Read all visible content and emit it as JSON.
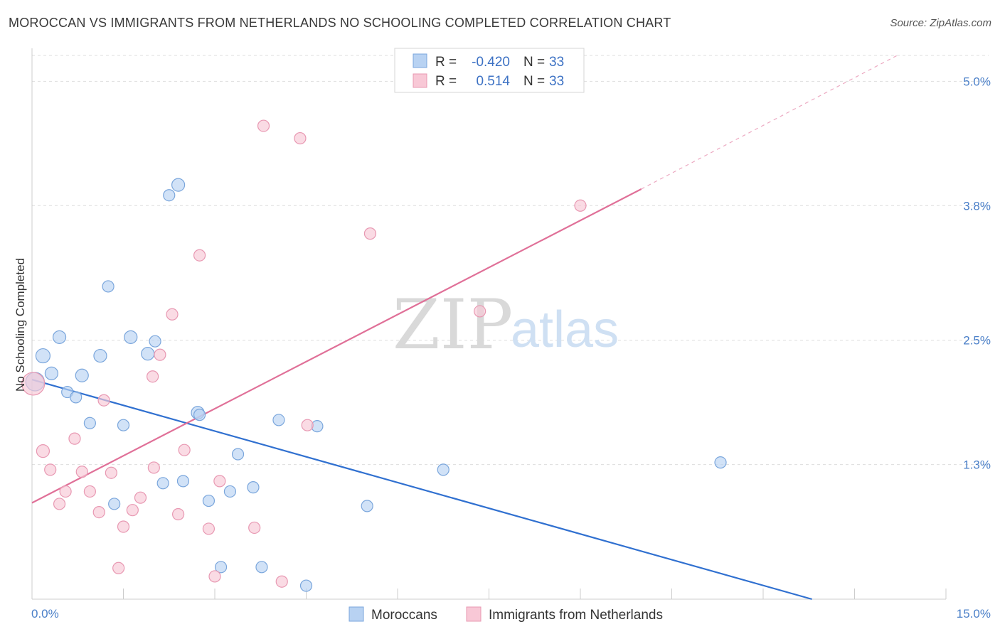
{
  "title": "MOROCCAN VS IMMIGRANTS FROM NETHERLANDS NO SCHOOLING COMPLETED CORRELATION CHART",
  "source": "Source: ZipAtlas.com",
  "watermark": {
    "zip": "ZIP",
    "atlas": "atlas"
  },
  "colors": {
    "blue_fill": "#b8d2f2",
    "blue_stroke": "#7aa6dc",
    "blue_line": "#3070d0",
    "pink_fill": "#f8c8d6",
    "pink_stroke": "#e898b2",
    "pink_line": "#e07098",
    "grid": "#dddddd",
    "axis_text": "#4a7fc8"
  },
  "legend": {
    "rows": [
      {
        "r_label": "R =",
        "r_value": "-0.420",
        "n_label": "N =",
        "n_value": "33"
      },
      {
        "r_label": "R =",
        "r_value": "0.514",
        "n_label": "N =",
        "n_value": "33"
      }
    ]
  },
  "chart_data": {
    "type": "scatter",
    "title": "MOROCCAN VS IMMIGRANTS FROM NETHERLANDS NO SCHOOLING COMPLETED CORRELATION CHART",
    "xlabel": "",
    "ylabel": "No Schooling Completed",
    "xlim": [
      0,
      15
    ],
    "ylim": [
      0,
      5.25
    ],
    "x_tick_labels": [
      "0.0%",
      "15.0%"
    ],
    "y_ticks": [
      1.3,
      2.5,
      3.8,
      5.0
    ],
    "y_tick_labels": [
      "1.3%",
      "2.5%",
      "3.8%",
      "5.0%"
    ],
    "grid": true,
    "legend_position": "top-center",
    "series": [
      {
        "name": "Moroccans",
        "color": "blue",
        "trend": {
          "x0": 0,
          "y0": 2.12,
          "x1": 12.8,
          "y1": 0.0
        },
        "points": [
          {
            "x": 0.05,
            "y": 2.1,
            "s": 13
          },
          {
            "x": 0.18,
            "y": 2.35,
            "s": 10
          },
          {
            "x": 0.32,
            "y": 2.18,
            "s": 9
          },
          {
            "x": 0.45,
            "y": 2.53,
            "s": 9
          },
          {
            "x": 0.58,
            "y": 2.0,
            "s": 8
          },
          {
            "x": 0.72,
            "y": 1.95,
            "s": 8
          },
          {
            "x": 0.82,
            "y": 2.16,
            "s": 9
          },
          {
            "x": 0.95,
            "y": 1.7,
            "s": 8
          },
          {
            "x": 1.12,
            "y": 2.35,
            "s": 9
          },
          {
            "x": 1.25,
            "y": 3.02,
            "s": 8
          },
          {
            "x": 1.35,
            "y": 0.92,
            "s": 8
          },
          {
            "x": 1.5,
            "y": 1.68,
            "s": 8
          },
          {
            "x": 1.62,
            "y": 2.53,
            "s": 9
          },
          {
            "x": 1.9,
            "y": 2.37,
            "s": 9
          },
          {
            "x": 2.02,
            "y": 2.49,
            "s": 8
          },
          {
            "x": 2.15,
            "y": 1.12,
            "s": 8
          },
          {
            "x": 2.25,
            "y": 3.9,
            "s": 8
          },
          {
            "x": 2.4,
            "y": 4.0,
            "s": 9
          },
          {
            "x": 2.48,
            "y": 1.14,
            "s": 8
          },
          {
            "x": 2.72,
            "y": 1.8,
            "s": 9
          },
          {
            "x": 2.75,
            "y": 1.78,
            "s": 8
          },
          {
            "x": 2.9,
            "y": 0.95,
            "s": 8
          },
          {
            "x": 3.1,
            "y": 0.31,
            "s": 8
          },
          {
            "x": 3.25,
            "y": 1.04,
            "s": 8
          },
          {
            "x": 3.38,
            "y": 1.4,
            "s": 8
          },
          {
            "x": 3.63,
            "y": 1.08,
            "s": 8
          },
          {
            "x": 3.77,
            "y": 0.31,
            "s": 8
          },
          {
            "x": 4.05,
            "y": 1.73,
            "s": 8
          },
          {
            "x": 4.5,
            "y": 0.13,
            "s": 8
          },
          {
            "x": 4.68,
            "y": 1.67,
            "s": 8
          },
          {
            "x": 5.5,
            "y": 0.9,
            "s": 8
          },
          {
            "x": 6.75,
            "y": 1.25,
            "s": 8
          },
          {
            "x": 11.3,
            "y": 1.32,
            "s": 8
          }
        ]
      },
      {
        "name": "Immigrants from Netherlands",
        "color": "pink",
        "trend": {
          "x0": 0,
          "y0": 0.93,
          "x1": 10.0,
          "y1": 3.96,
          "dashed_to_x": 14.2,
          "dashed_to_y": 5.25
        },
        "points": [
          {
            "x": 0.02,
            "y": 2.08,
            "s": 16
          },
          {
            "x": 0.18,
            "y": 1.43,
            "s": 9
          },
          {
            "x": 0.3,
            "y": 1.25,
            "s": 8
          },
          {
            "x": 0.45,
            "y": 0.92,
            "s": 8
          },
          {
            "x": 0.55,
            "y": 1.04,
            "s": 8
          },
          {
            "x": 0.7,
            "y": 1.55,
            "s": 8
          },
          {
            "x": 0.82,
            "y": 1.23,
            "s": 8
          },
          {
            "x": 0.95,
            "y": 1.04,
            "s": 8
          },
          {
            "x": 1.1,
            "y": 0.84,
            "s": 8
          },
          {
            "x": 1.18,
            "y": 1.92,
            "s": 8
          },
          {
            "x": 1.3,
            "y": 1.22,
            "s": 8
          },
          {
            "x": 1.42,
            "y": 0.3,
            "s": 8
          },
          {
            "x": 1.5,
            "y": 0.7,
            "s": 8
          },
          {
            "x": 1.65,
            "y": 0.86,
            "s": 8
          },
          {
            "x": 1.78,
            "y": 0.98,
            "s": 8
          },
          {
            "x": 1.98,
            "y": 2.15,
            "s": 8
          },
          {
            "x": 2.0,
            "y": 1.27,
            "s": 8
          },
          {
            "x": 2.1,
            "y": 2.36,
            "s": 8
          },
          {
            "x": 2.3,
            "y": 2.75,
            "s": 8
          },
          {
            "x": 2.4,
            "y": 0.82,
            "s": 8
          },
          {
            "x": 2.5,
            "y": 1.44,
            "s": 8
          },
          {
            "x": 2.75,
            "y": 3.32,
            "s": 8
          },
          {
            "x": 2.9,
            "y": 0.68,
            "s": 8
          },
          {
            "x": 3.0,
            "y": 0.22,
            "s": 8
          },
          {
            "x": 3.08,
            "y": 1.14,
            "s": 8
          },
          {
            "x": 3.65,
            "y": 0.69,
            "s": 8
          },
          {
            "x": 3.8,
            "y": 4.57,
            "s": 8
          },
          {
            "x": 4.1,
            "y": 0.17,
            "s": 8
          },
          {
            "x": 4.4,
            "y": 4.45,
            "s": 8
          },
          {
            "x": 4.52,
            "y": 1.68,
            "s": 8
          },
          {
            "x": 5.55,
            "y": 3.53,
            "s": 8
          },
          {
            "x": 7.35,
            "y": 2.78,
            "s": 8
          },
          {
            "x": 9.0,
            "y": 3.8,
            "s": 8
          }
        ]
      }
    ]
  }
}
